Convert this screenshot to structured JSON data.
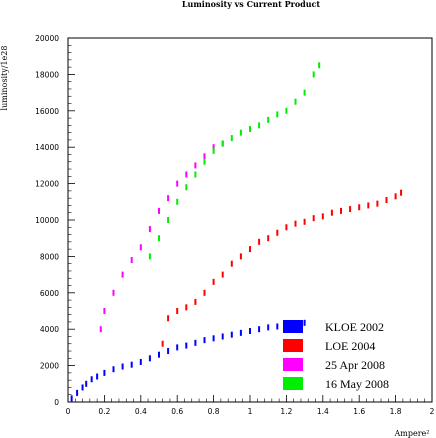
{
  "chart_data": {
    "type": "scatter",
    "title": "Luminosity vs Current Product",
    "xlabel": "Ampere²",
    "ylabel": "luminosity/1e28",
    "xlim": [
      0,
      2
    ],
    "ylim": [
      0,
      20000
    ],
    "x_ticks": [
      "0",
      "0.2",
      "0.4",
      "0.6",
      "0.8",
      "1",
      "1.2",
      "1.4",
      "1.6",
      "1.8",
      "2"
    ],
    "y_ticks": [
      "0",
      "2000",
      "4000",
      "6000",
      "8000",
      "10000",
      "12000",
      "14000",
      "16000",
      "18000",
      "20000"
    ],
    "grid": false,
    "legend_position": "bottom-right",
    "series": [
      {
        "name": "KLOE 2002",
        "color": "#0000ff",
        "points": [
          [
            0.02,
            200
          ],
          [
            0.05,
            500
          ],
          [
            0.08,
            800
          ],
          [
            0.1,
            1000
          ],
          [
            0.13,
            1250
          ],
          [
            0.16,
            1400
          ],
          [
            0.2,
            1600
          ],
          [
            0.25,
            1800
          ],
          [
            0.3,
            1950
          ],
          [
            0.35,
            2050
          ],
          [
            0.4,
            2200
          ],
          [
            0.45,
            2400
          ],
          [
            0.5,
            2600
          ],
          [
            0.55,
            2800
          ],
          [
            0.6,
            3000
          ],
          [
            0.65,
            3100
          ],
          [
            0.7,
            3250
          ],
          [
            0.75,
            3400
          ],
          [
            0.8,
            3500
          ],
          [
            0.85,
            3600
          ],
          [
            0.9,
            3700
          ],
          [
            0.95,
            3800
          ],
          [
            1.0,
            3900
          ],
          [
            1.05,
            4000
          ],
          [
            1.1,
            4100
          ],
          [
            1.15,
            4150
          ],
          [
            1.2,
            4200
          ],
          [
            1.25,
            4300
          ],
          [
            1.3,
            4350
          ]
        ]
      },
      {
        "name": "LOE 2004",
        "color": "#ff0000",
        "points": [
          [
            0.52,
            3200
          ],
          [
            0.55,
            4600
          ],
          [
            0.6,
            5000
          ],
          [
            0.65,
            5200
          ],
          [
            0.7,
            5500
          ],
          [
            0.75,
            6000
          ],
          [
            0.8,
            6600
          ],
          [
            0.85,
            7000
          ],
          [
            0.9,
            7600
          ],
          [
            0.95,
            8000
          ],
          [
            1.0,
            8400
          ],
          [
            1.05,
            8800
          ],
          [
            1.1,
            9000
          ],
          [
            1.15,
            9300
          ],
          [
            1.2,
            9600
          ],
          [
            1.25,
            9800
          ],
          [
            1.3,
            9900
          ],
          [
            1.35,
            10100
          ],
          [
            1.4,
            10200
          ],
          [
            1.45,
            10400
          ],
          [
            1.5,
            10500
          ],
          [
            1.55,
            10600
          ],
          [
            1.6,
            10700
          ],
          [
            1.65,
            10800
          ],
          [
            1.7,
            10900
          ],
          [
            1.75,
            11100
          ],
          [
            1.8,
            11300
          ],
          [
            1.83,
            11500
          ]
        ]
      },
      {
        "name": "25 Apr 2008",
        "color": "#ff00ff",
        "points": [
          [
            0.18,
            4000
          ],
          [
            0.2,
            5000
          ],
          [
            0.25,
            6000
          ],
          [
            0.3,
            7000
          ],
          [
            0.35,
            7800
          ],
          [
            0.4,
            8500
          ],
          [
            0.45,
            9500
          ],
          [
            0.5,
            10500
          ],
          [
            0.55,
            11200
          ],
          [
            0.6,
            12000
          ],
          [
            0.65,
            12500
          ],
          [
            0.7,
            13000
          ],
          [
            0.75,
            13500
          ],
          [
            0.8,
            14000
          ],
          [
            0.85,
            14200
          ]
        ]
      },
      {
        "name": "16 May 2008",
        "color": "#00ee00",
        "points": [
          [
            0.45,
            8000
          ],
          [
            0.5,
            9000
          ],
          [
            0.55,
            10000
          ],
          [
            0.6,
            11000
          ],
          [
            0.65,
            11800
          ],
          [
            0.7,
            12500
          ],
          [
            0.75,
            13200
          ],
          [
            0.8,
            13800
          ],
          [
            0.85,
            14200
          ],
          [
            0.9,
            14500
          ],
          [
            0.95,
            14800
          ],
          [
            1.0,
            15000
          ],
          [
            1.05,
            15200
          ],
          [
            1.1,
            15500
          ],
          [
            1.15,
            15800
          ],
          [
            1.2,
            16000
          ],
          [
            1.25,
            16500
          ],
          [
            1.3,
            17000
          ],
          [
            1.35,
            18000
          ],
          [
            1.38,
            18500
          ]
        ]
      }
    ],
    "legend": [
      {
        "label": "KLOE 2002",
        "color": "#0000ff"
      },
      {
        "label": "LOE 2004",
        "color": "#ff0000"
      },
      {
        "label": "25 Apr 2008",
        "color": "#ff00ff"
      },
      {
        "label": "16 May 2008",
        "color": "#00ee00"
      }
    ]
  }
}
